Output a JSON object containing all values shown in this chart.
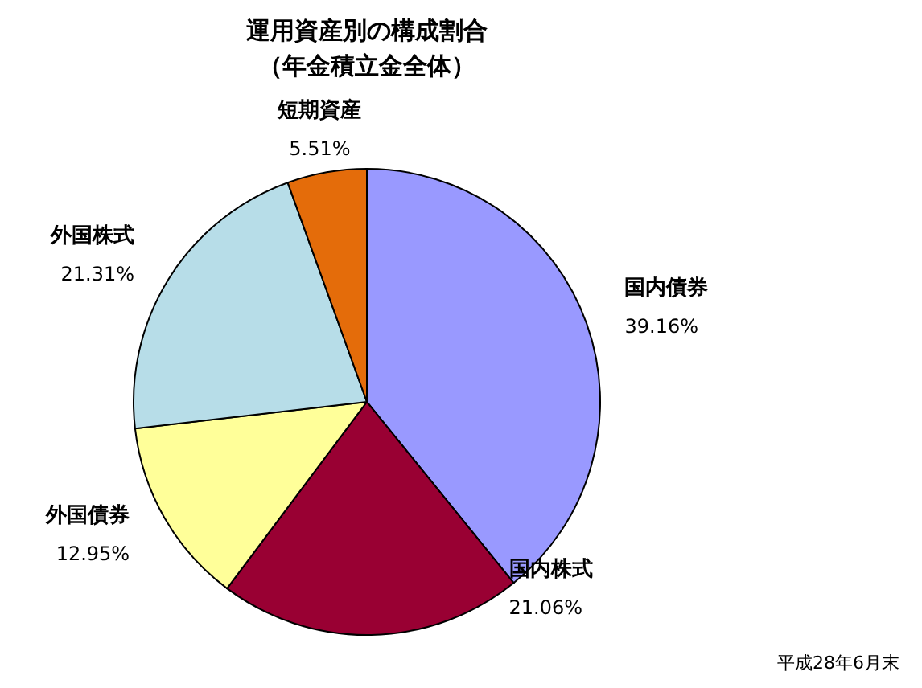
{
  "chart_data": {
    "type": "pie",
    "title": "運用資産別の構成割合",
    "subtitle": "（年金積立金全体）",
    "categories": [
      "国内債券",
      "国内株式",
      "外国債券",
      "外国株式",
      "短期資産"
    ],
    "values": [
      39.16,
      21.06,
      12.95,
      21.31,
      5.51
    ],
    "value_labels": [
      "39.16%",
      "21.06%",
      "12.95%",
      "21.31%",
      "5.51%"
    ],
    "colors": [
      "#9999ff",
      "#990033",
      "#ffff99",
      "#b7dde8",
      "#e46c0a"
    ],
    "annotations": [
      "平成28年6月末"
    ]
  }
}
